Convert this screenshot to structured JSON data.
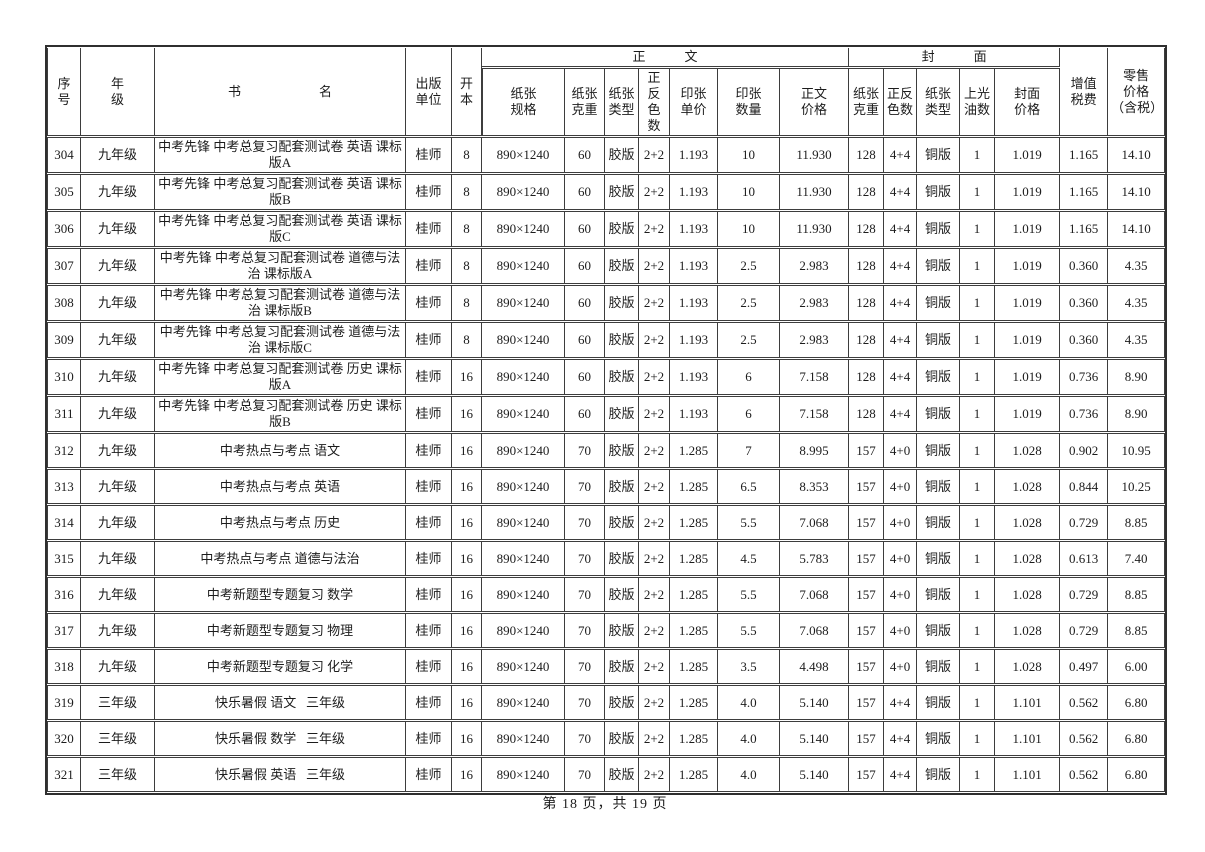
{
  "table": {
    "header": {
      "top": [
        "序\n号",
        "年\n级",
        "书　　　　　　名",
        "出版\n单位",
        "开\n本",
        "正　　　文",
        "封　　　面",
        "增值\n税费",
        "零售\n价格\n（含税）"
      ],
      "sub": [
        "纸张\n规格",
        "纸张\n克重",
        "纸张\n类型",
        "正反\n色数",
        "印张\n单价",
        "印张\n数量",
        "正文\n价格",
        "纸张\n克重",
        "正反\n色数",
        "纸张\n类型",
        "上光\n油数",
        "封面\n价格"
      ]
    },
    "rows": [
      [
        "304",
        "九年级",
        "中考先锋 中考总复习配套测试卷 英语 课标版A",
        "桂师",
        "8",
        "890×1240",
        "60",
        "胶版",
        "2+2",
        "1.193",
        "10",
        "11.930",
        "128",
        "4+4",
        "铜版",
        "1",
        "1.019",
        "1.165",
        "14.10"
      ],
      [
        "305",
        "九年级",
        "中考先锋 中考总复习配套测试卷 英语 课标版B",
        "桂师",
        "8",
        "890×1240",
        "60",
        "胶版",
        "2+2",
        "1.193",
        "10",
        "11.930",
        "128",
        "4+4",
        "铜版",
        "1",
        "1.019",
        "1.165",
        "14.10"
      ],
      [
        "306",
        "九年级",
        "中考先锋 中考总复习配套测试卷 英语 课标版C",
        "桂师",
        "8",
        "890×1240",
        "60",
        "胶版",
        "2+2",
        "1.193",
        "10",
        "11.930",
        "128",
        "4+4",
        "铜版",
        "1",
        "1.019",
        "1.165",
        "14.10"
      ],
      [
        "307",
        "九年级",
        "中考先锋 中考总复习配套测试卷 道德与法治 课标版A",
        "桂师",
        "8",
        "890×1240",
        "60",
        "胶版",
        "2+2",
        "1.193",
        "2.5",
        "2.983",
        "128",
        "4+4",
        "铜版",
        "1",
        "1.019",
        "0.360",
        "4.35"
      ],
      [
        "308",
        "九年级",
        "中考先锋 中考总复习配套测试卷 道德与法治 课标版B",
        "桂师",
        "8",
        "890×1240",
        "60",
        "胶版",
        "2+2",
        "1.193",
        "2.5",
        "2.983",
        "128",
        "4+4",
        "铜版",
        "1",
        "1.019",
        "0.360",
        "4.35"
      ],
      [
        "309",
        "九年级",
        "中考先锋 中考总复习配套测试卷 道德与法治 课标版C",
        "桂师",
        "8",
        "890×1240",
        "60",
        "胶版",
        "2+2",
        "1.193",
        "2.5",
        "2.983",
        "128",
        "4+4",
        "铜版",
        "1",
        "1.019",
        "0.360",
        "4.35"
      ],
      [
        "310",
        "九年级",
        "中考先锋 中考总复习配套测试卷 历史 课标版A",
        "桂师",
        "16",
        "890×1240",
        "60",
        "胶版",
        "2+2",
        "1.193",
        "6",
        "7.158",
        "128",
        "4+4",
        "铜版",
        "1",
        "1.019",
        "0.736",
        "8.90"
      ],
      [
        "311",
        "九年级",
        "中考先锋 中考总复习配套测试卷 历史 课标版B",
        "桂师",
        "16",
        "890×1240",
        "60",
        "胶版",
        "2+2",
        "1.193",
        "6",
        "7.158",
        "128",
        "4+4",
        "铜版",
        "1",
        "1.019",
        "0.736",
        "8.90"
      ],
      [
        "312",
        "九年级",
        "中考热点与考点 语文",
        "桂师",
        "16",
        "890×1240",
        "70",
        "胶版",
        "2+2",
        "1.285",
        "7",
        "8.995",
        "157",
        "4+0",
        "铜版",
        "1",
        "1.028",
        "0.902",
        "10.95"
      ],
      [
        "313",
        "九年级",
        "中考热点与考点 英语",
        "桂师",
        "16",
        "890×1240",
        "70",
        "胶版",
        "2+2",
        "1.285",
        "6.5",
        "8.353",
        "157",
        "4+0",
        "铜版",
        "1",
        "1.028",
        "0.844",
        "10.25"
      ],
      [
        "314",
        "九年级",
        "中考热点与考点 历史",
        "桂师",
        "16",
        "890×1240",
        "70",
        "胶版",
        "2+2",
        "1.285",
        "5.5",
        "7.068",
        "157",
        "4+0",
        "铜版",
        "1",
        "1.028",
        "0.729",
        "8.85"
      ],
      [
        "315",
        "九年级",
        "中考热点与考点 道德与法治",
        "桂师",
        "16",
        "890×1240",
        "70",
        "胶版",
        "2+2",
        "1.285",
        "4.5",
        "5.783",
        "157",
        "4+0",
        "铜版",
        "1",
        "1.028",
        "0.613",
        "7.40"
      ],
      [
        "316",
        "九年级",
        "中考新题型专题复习 数学",
        "桂师",
        "16",
        "890×1240",
        "70",
        "胶版",
        "2+2",
        "1.285",
        "5.5",
        "7.068",
        "157",
        "4+0",
        "铜版",
        "1",
        "1.028",
        "0.729",
        "8.85"
      ],
      [
        "317",
        "九年级",
        "中考新题型专题复习 物理",
        "桂师",
        "16",
        "890×1240",
        "70",
        "胶版",
        "2+2",
        "1.285",
        "5.5",
        "7.068",
        "157",
        "4+0",
        "铜版",
        "1",
        "1.028",
        "0.729",
        "8.85"
      ],
      [
        "318",
        "九年级",
        "中考新题型专题复习 化学",
        "桂师",
        "16",
        "890×1240",
        "70",
        "胶版",
        "2+2",
        "1.285",
        "3.5",
        "4.498",
        "157",
        "4+0",
        "铜版",
        "1",
        "1.028",
        "0.497",
        "6.00"
      ],
      [
        "319",
        "三年级",
        "快乐暑假 语文   三年级",
        "桂师",
        "16",
        "890×1240",
        "70",
        "胶版",
        "2+2",
        "1.285",
        "4.0",
        "5.140",
        "157",
        "4+4",
        "铜版",
        "1",
        "1.101",
        "0.562",
        "6.80"
      ],
      [
        "320",
        "三年级",
        "快乐暑假 数学   三年级",
        "桂师",
        "16",
        "890×1240",
        "70",
        "胶版",
        "2+2",
        "1.285",
        "4.0",
        "5.140",
        "157",
        "4+4",
        "铜版",
        "1",
        "1.101",
        "0.562",
        "6.80"
      ],
      [
        "321",
        "三年级",
        "快乐暑假 英语   三年级",
        "桂师",
        "16",
        "890×1240",
        "70",
        "胶版",
        "2+2",
        "1.285",
        "4.0",
        "5.140",
        "157",
        "4+4",
        "铜版",
        "1",
        "1.101",
        "0.562",
        "6.80"
      ]
    ]
  },
  "footer": {
    "page_text": "第 18 页，共 19 页"
  }
}
